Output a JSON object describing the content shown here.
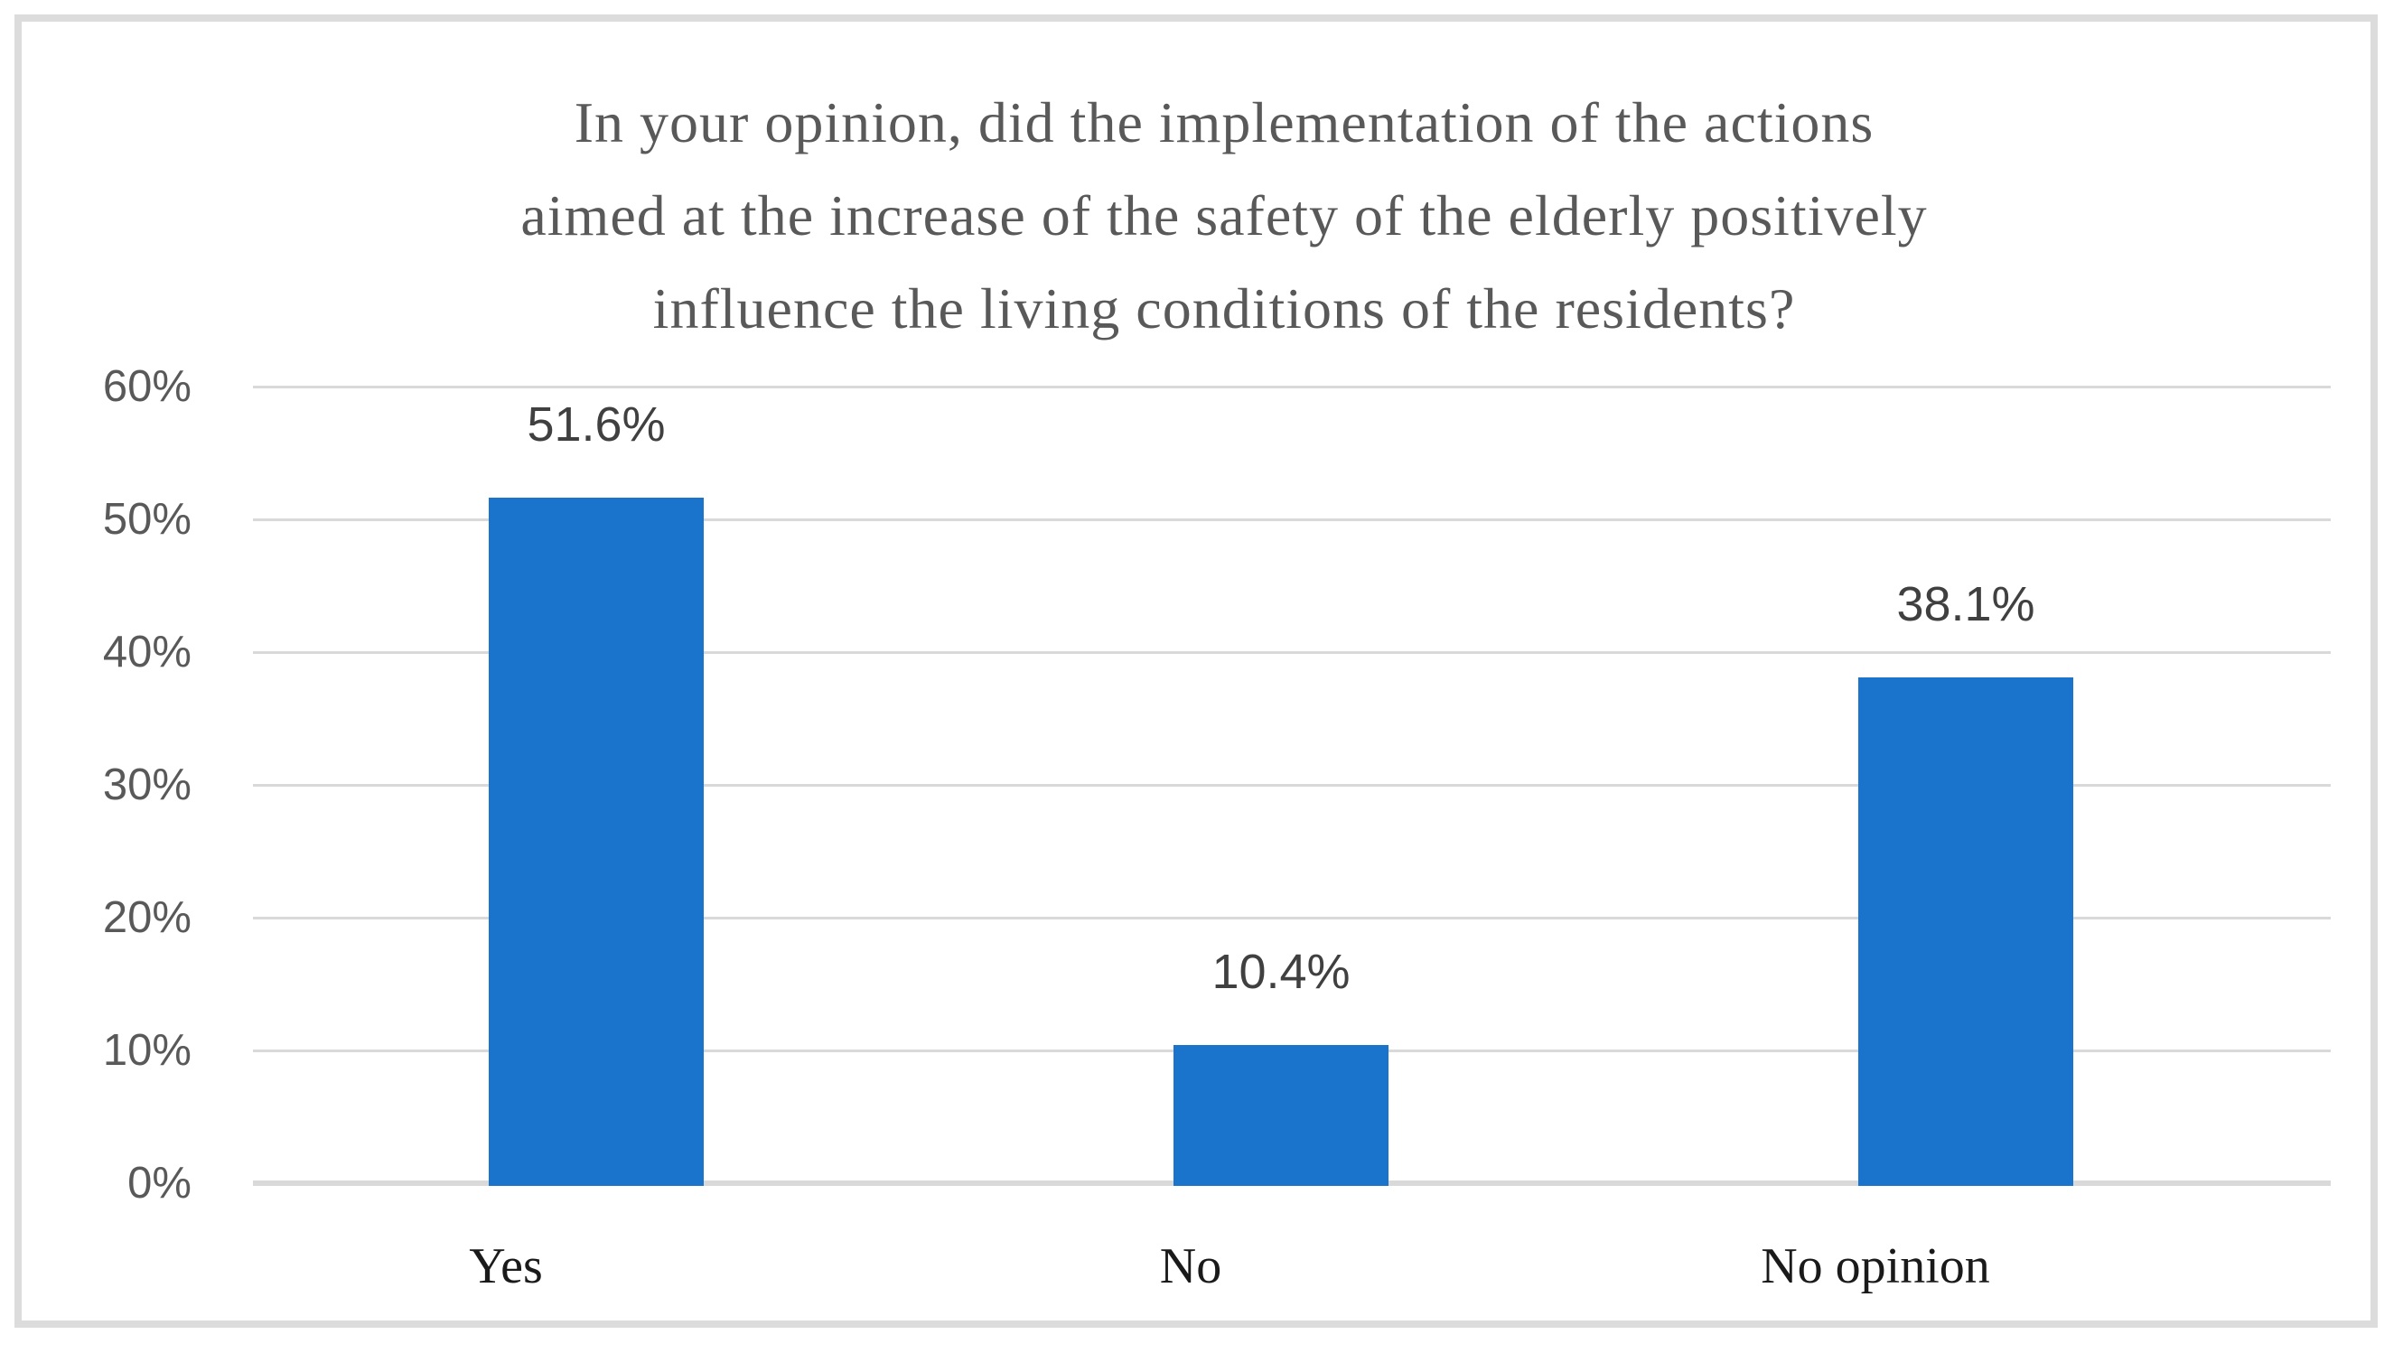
{
  "chart_data": {
    "type": "bar",
    "title": "In your opinion, did the implementation of the actions aimed at the increase of the safety of the elderly positively influence the living conditions of the residents?",
    "title_lines": [
      "In your opinion, did the implementation of the actions",
      "aimed at the increase of the safety of the elderly positively",
      "influence the living conditions of the residents?"
    ],
    "categories": [
      "Yes",
      "No",
      "No opinion"
    ],
    "values": [
      51.6,
      10.4,
      38.1
    ],
    "data_labels": [
      "51.6%",
      "10.4%",
      "38.1%"
    ],
    "xlabel": "",
    "ylabel": "",
    "ylim": [
      0,
      60
    ],
    "ytick_values": [
      0,
      10,
      20,
      30,
      40,
      50,
      60
    ],
    "ytick_labels": [
      "0%",
      "10%",
      "20%",
      "30%",
      "40%",
      "50%",
      "60%"
    ],
    "grid": true,
    "legend_position": "none",
    "colors": {
      "bar": "#1b74cb",
      "gridline": "#d9d9d9",
      "frame_border": "#dcdcdc",
      "title_text": "#595959",
      "ytick_text": "#595959",
      "data_label_text": "#404040",
      "category_text": "#1a1a1a",
      "background": "#ffffff"
    }
  }
}
